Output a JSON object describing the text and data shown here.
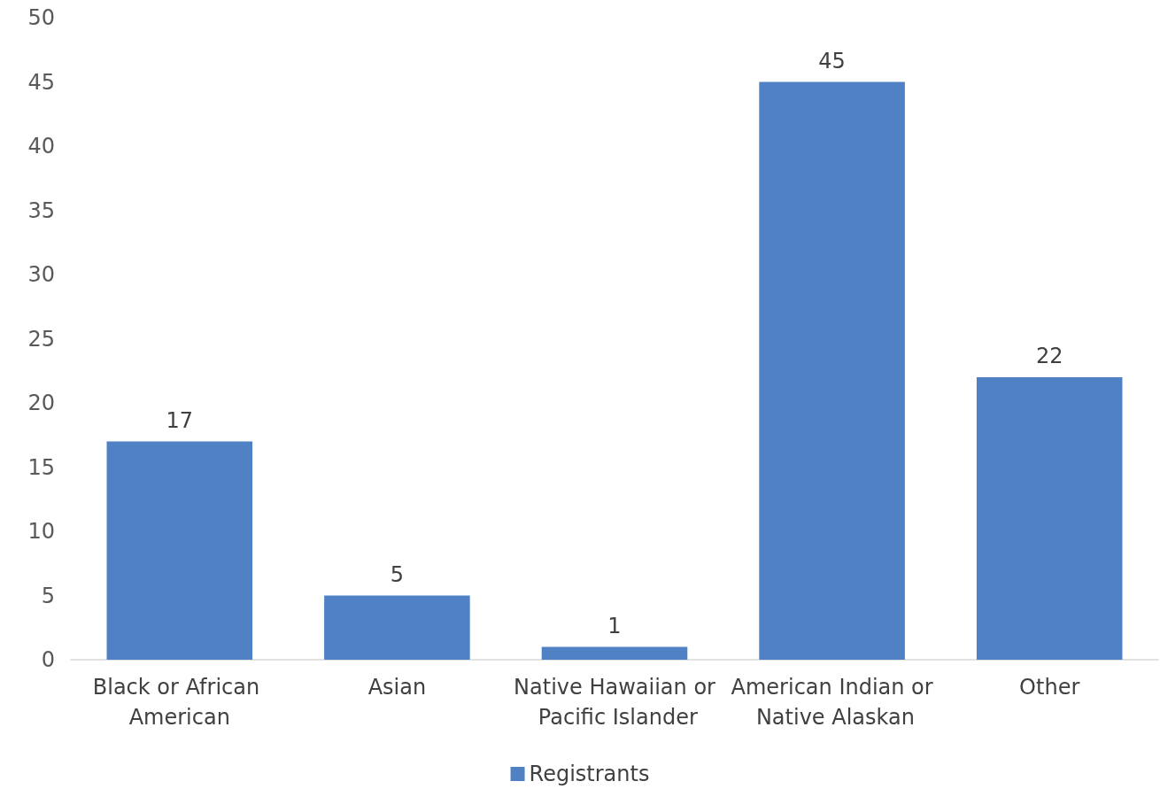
{
  "chart_data": {
    "type": "bar",
    "categories": [
      "Black or African American",
      "Asian",
      "Native Hawaiian or Pacific Islander",
      "American Indian or Native Alaskan",
      "Other"
    ],
    "series": [
      {
        "name": "Registrants",
        "color": "#4f81c4",
        "values": [
          17,
          5,
          1,
          45,
          22
        ]
      }
    ],
    "ylim": [
      0,
      50
    ],
    "yticks": [
      0,
      5,
      10,
      15,
      20,
      25,
      30,
      35,
      40,
      45,
      50
    ],
    "grid": false,
    "legend": "bottom",
    "data_labels": true
  }
}
